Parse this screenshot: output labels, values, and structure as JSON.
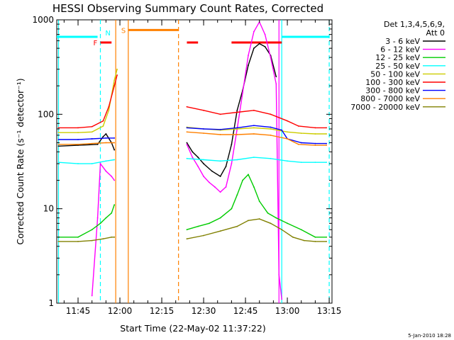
{
  "chart_data": {
    "type": "line",
    "title": "HESSI Observing Summary Count Rates, Corrected",
    "xlabel": "Start Time (22-May-02 11:37:22)",
    "ylabel": "Corrected Count Rate (s⁻¹ detector⁻¹)",
    "yscale": "log",
    "ylim": [
      1,
      1000
    ],
    "xlim": [
      "11:37:22",
      "13:16:00"
    ],
    "x_ticks": [
      "11:45",
      "12:00",
      "12:15",
      "12:30",
      "12:45",
      "13:00",
      "13:15"
    ],
    "y_ticks": [
      "1",
      "10",
      "100",
      "1000"
    ],
    "grid": false,
    "legend_position": "right",
    "legend_header": [
      "Det 1,3,4,5,6,9,",
      "Att 0"
    ],
    "footer_date": "5-Jan-2010 18:28",
    "series": [
      {
        "name": "3 - 6 keV",
        "color": "#000000",
        "segments": [
          [
            [
              "11:38",
              46
            ],
            [
              "11:45",
              47
            ],
            [
              "11:52",
              48
            ],
            [
              "11:54",
              58
            ],
            [
              "11:55",
              62
            ],
            [
              "11:57",
              50
            ],
            [
              "11:58",
              42
            ]
          ],
          [
            [
              "12:24",
              50
            ],
            [
              "12:26",
              40
            ],
            [
              "12:28",
              35
            ],
            [
              "12:30",
              30
            ],
            [
              "12:33",
              25
            ],
            [
              "12:36",
              22
            ],
            [
              "12:38",
              28
            ],
            [
              "12:40",
              48
            ],
            [
              "12:42",
              110
            ],
            [
              "12:44",
              180
            ],
            [
              "12:46",
              330
            ],
            [
              "12:48",
              500
            ],
            [
              "12:50",
              560
            ],
            [
              "12:52",
              520
            ],
            [
              "12:54",
              420
            ],
            [
              "12:56",
              250
            ]
          ]
        ]
      },
      {
        "name": "6 - 12 keV",
        "color": "#ff00ff",
        "segments": [
          [
            [
              "11:50",
              1.2
            ],
            [
              "11:52",
              8
            ],
            [
              "11:53",
              30
            ],
            [
              "11:55",
              25
            ],
            [
              "11:57",
              22
            ],
            [
              "11:58",
              20
            ]
          ],
          [
            [
              "12:24",
              48
            ],
            [
              "12:26",
              35
            ],
            [
              "12:28",
              28
            ],
            [
              "12:30",
              22
            ],
            [
              "12:32",
              19
            ],
            [
              "12:34",
              17
            ],
            [
              "12:36",
              15
            ],
            [
              "12:38",
              17
            ],
            [
              "12:40",
              30
            ],
            [
              "12:42",
              70
            ],
            [
              "12:44",
              170
            ],
            [
              "12:46",
              420
            ],
            [
              "12:48",
              750
            ],
            [
              "12:50",
              950
            ],
            [
              "12:52",
              700
            ],
            [
              "12:54",
              400
            ],
            [
              "12:56",
              210
            ],
            [
              "12:57",
              2
            ],
            [
              "12:58",
              1.1
            ]
          ]
        ]
      },
      {
        "name": "12 - 25 keV",
        "color": "#00cc00",
        "segments": [
          [
            [
              "11:38",
              5
            ],
            [
              "11:45",
              5
            ],
            [
              "11:50",
              6
            ],
            [
              "11:53",
              7
            ],
            [
              "11:55",
              8
            ],
            [
              "11:57",
              9
            ],
            [
              "11:58",
              11
            ]
          ],
          [
            [
              "12:24",
              6
            ],
            [
              "12:28",
              6.5
            ],
            [
              "12:32",
              7
            ],
            [
              "12:36",
              8
            ],
            [
              "12:40",
              10
            ],
            [
              "12:42",
              14
            ],
            [
              "12:44",
              20
            ],
            [
              "12:46",
              23
            ],
            [
              "12:48",
              17
            ],
            [
              "12:50",
              12
            ],
            [
              "12:53",
              9
            ],
            [
              "12:56",
              8
            ],
            [
              "13:00",
              7
            ],
            [
              "13:05",
              6
            ],
            [
              "13:10",
              5
            ],
            [
              "13:14",
              5
            ]
          ]
        ]
      },
      {
        "name": "25 - 50 keV",
        "color": "#00ffff",
        "segments": [
          [
            [
              "11:38",
              31
            ],
            [
              "11:45",
              30
            ],
            [
              "11:50",
              30
            ],
            [
              "11:55",
              32
            ],
            [
              "11:58",
              33
            ]
          ],
          [
            [
              "12:24",
              34
            ],
            [
              "12:30",
              33
            ],
            [
              "12:36",
              32
            ],
            [
              "12:42",
              33
            ],
            [
              "12:48",
              35
            ],
            [
              "12:54",
              34
            ],
            [
              "13:00",
              32
            ],
            [
              "13:05",
              31
            ],
            [
              "13:10",
              31
            ],
            [
              "13:14",
              31
            ]
          ]
        ]
      },
      {
        "name": "50 - 100 keV",
        "color": "#cccc00",
        "segments": [
          [
            [
              "11:38",
              64
            ],
            [
              "11:45",
              64
            ],
            [
              "11:50",
              65
            ],
            [
              "11:54",
              75
            ],
            [
              "11:56",
              110
            ],
            [
              "11:58",
              230
            ],
            [
              "11:59",
              300
            ]
          ],
          [
            [
              "12:24",
              73
            ],
            [
              "12:30",
              70
            ],
            [
              "12:36",
              68
            ],
            [
              "12:42",
              70
            ],
            [
              "12:48",
              72
            ],
            [
              "12:54",
              70
            ],
            [
              "13:00",
              65
            ],
            [
              "13:05",
              63
            ],
            [
              "13:10",
              62
            ],
            [
              "13:14",
              62
            ]
          ]
        ]
      },
      {
        "name": "100 - 300 keV",
        "color": "#ff0000",
        "segments": [
          [
            [
              "11:38",
              72
            ],
            [
              "11:45",
              72
            ],
            [
              "11:50",
              74
            ],
            [
              "11:54",
              85
            ],
            [
              "11:56",
              120
            ],
            [
              "11:58",
              200
            ],
            [
              "11:59",
              260
            ]
          ],
          [
            [
              "12:24",
              120
            ],
            [
              "12:30",
              110
            ],
            [
              "12:36",
              100
            ],
            [
              "12:42",
              105
            ],
            [
              "12:48",
              110
            ],
            [
              "12:54",
              100
            ],
            [
              "13:00",
              85
            ],
            [
              "13:04",
              75
            ],
            [
              "13:10",
              72
            ],
            [
              "13:14",
              72
            ]
          ]
        ]
      },
      {
        "name": "300 - 800 keV",
        "color": "#0000ff",
        "segments": [
          [
            [
              "11:38",
              54
            ],
            [
              "11:45",
              54
            ],
            [
              "11:50",
              55
            ],
            [
              "11:55",
              56
            ],
            [
              "11:58",
              56
            ]
          ],
          [
            [
              "12:24",
              72
            ],
            [
              "12:30",
              70
            ],
            [
              "12:36",
              69
            ],
            [
              "12:42",
              72
            ],
            [
              "12:48",
              76
            ],
            [
              "12:54",
              73
            ],
            [
              "12:58",
              68
            ],
            [
              "13:00",
              55
            ],
            [
              "13:05",
              50
            ],
            [
              "13:10",
              49
            ],
            [
              "13:14",
              49
            ]
          ]
        ]
      },
      {
        "name": "800 - 7000 keV",
        "color": "#ff8000",
        "segments": [
          [
            [
              "11:38",
              48
            ],
            [
              "11:45",
              48
            ],
            [
              "11:50",
              49
            ],
            [
              "11:55",
              50
            ],
            [
              "11:58",
              50
            ]
          ],
          [
            [
              "12:24",
              65
            ],
            [
              "12:30",
              63
            ],
            [
              "12:36",
              61
            ],
            [
              "12:42",
              61
            ],
            [
              "12:48",
              62
            ],
            [
              "12:54",
              60
            ],
            [
              "13:00",
              55
            ],
            [
              "13:04",
              48
            ],
            [
              "13:10",
              47
            ],
            [
              "13:14",
              47
            ]
          ]
        ]
      },
      {
        "name": "7000 - 20000 keV",
        "color": "#808000",
        "segments": [
          [
            [
              "11:38",
              4.5
            ],
            [
              "11:45",
              4.5
            ],
            [
              "11:50",
              4.6
            ],
            [
              "11:54",
              4.8
            ],
            [
              "11:57",
              5
            ],
            [
              "11:58",
              5
            ]
          ],
          [
            [
              "12:24",
              4.8
            ],
            [
              "12:30",
              5.2
            ],
            [
              "12:36",
              5.8
            ],
            [
              "12:42",
              6.5
            ],
            [
              "12:46",
              7.5
            ],
            [
              "12:50",
              7.8
            ],
            [
              "12:54",
              7
            ],
            [
              "12:58",
              6
            ],
            [
              "13:02",
              5
            ],
            [
              "13:06",
              4.6
            ],
            [
              "13:10",
              4.5
            ],
            [
              "13:14",
              4.5
            ]
          ]
        ]
      }
    ],
    "flags": [
      {
        "label": "",
        "color": "#00ffff",
        "y": 660,
        "from": "11:37:22",
        "to": "11:52"
      },
      {
        "label": "",
        "color": "#00ffff",
        "y": 660,
        "from": "12:58",
        "to": "13:15"
      },
      {
        "label": "S",
        "color": "#ff8000",
        "y": 780,
        "from": "12:03",
        "to": "12:21"
      },
      {
        "label": "F",
        "color": "#ff0000",
        "y": 575,
        "from": "11:53",
        "to": "11:57"
      },
      {
        "label": "",
        "color": "#ff0000",
        "y": 575,
        "from": "12:24",
        "to": "12:28"
      },
      {
        "label": "",
        "color": "#ff0000",
        "y": 575,
        "from": "12:40",
        "to": "12:58"
      },
      {
        "label": "N",
        "color": "#00ffff",
        "y": 0,
        "from": "11:54",
        "to": "11:54"
      }
    ],
    "markers": [
      {
        "time": "11:38:00",
        "color": "#00ffff",
        "style": "solid"
      },
      {
        "time": "11:53:00",
        "color": "#00ffff",
        "style": "dashed"
      },
      {
        "time": "11:58:30",
        "color": "#ff8000",
        "style": "solid"
      },
      {
        "time": "12:03:00",
        "color": "#ff8000",
        "style": "solid"
      },
      {
        "time": "12:21:00",
        "color": "#ff8000",
        "style": "dashed"
      },
      {
        "time": "12:58:00",
        "color": "#00ffff",
        "style": "solid"
      },
      {
        "time": "12:57:00",
        "color": "#ff00ff",
        "style": "solid"
      },
      {
        "time": "13:15:00",
        "color": "#00ffff",
        "style": "dashed"
      }
    ]
  }
}
